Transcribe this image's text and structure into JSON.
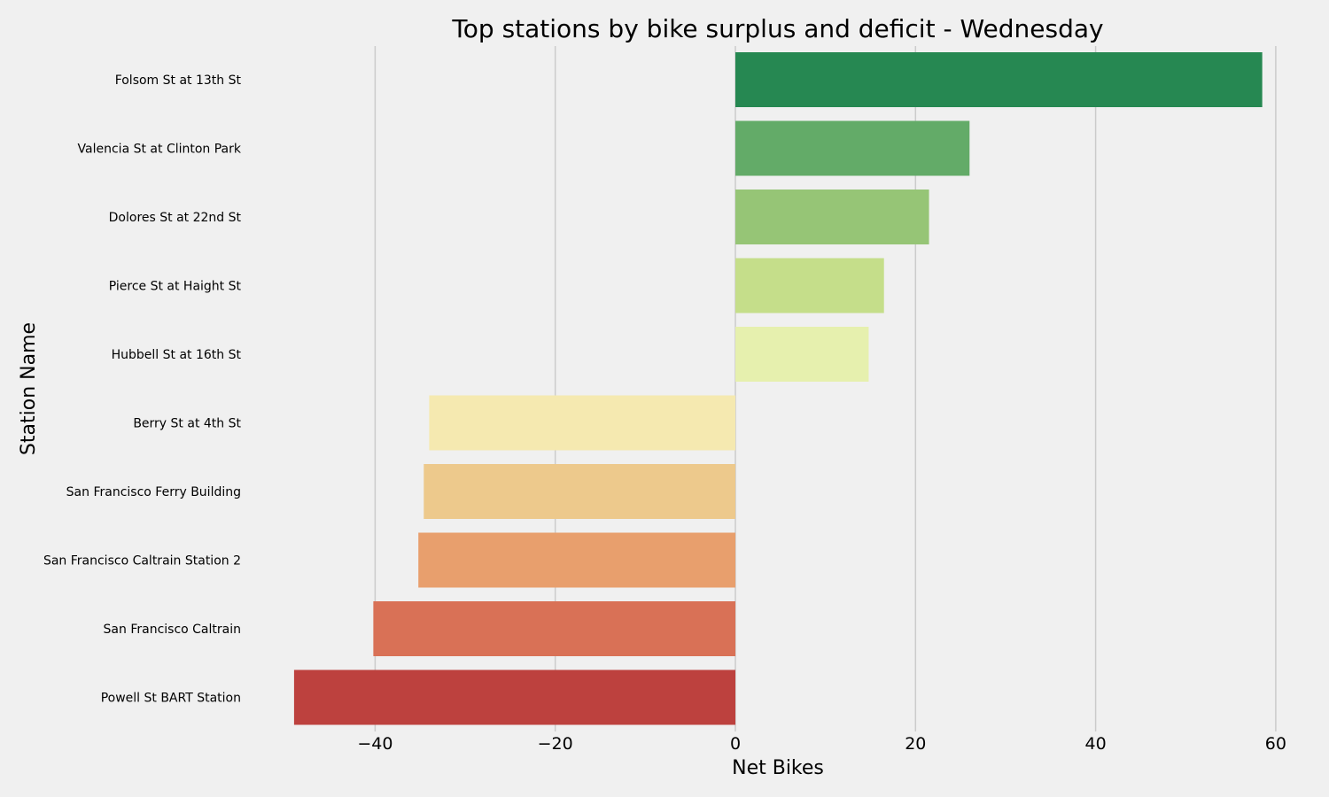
{
  "chart_data": {
    "type": "bar",
    "orientation": "horizontal",
    "title": "Top stations by bike surplus and deficit - Wednesday",
    "xlabel": "Net Bikes",
    "ylabel": "Station Name",
    "xlim": [
      -49,
      60
    ],
    "xticks": [
      -40,
      -20,
      0,
      20,
      40,
      60
    ],
    "xtick_labels": [
      "−40",
      "−20",
      "0",
      "20",
      "40",
      "60"
    ],
    "grid": "vertical",
    "categories": [
      "Folsom St at 13th St",
      "Valencia St at Clinton Park",
      "Dolores St at 22nd St",
      "Pierce St at Haight St",
      "Hubbell St at 16th St",
      "Berry St at 4th St",
      "San Francisco Ferry Building",
      "San Francisco Caltrain Station 2",
      "San Francisco Caltrain",
      "Powell St BART Station"
    ],
    "values": [
      58.5,
      26,
      21.5,
      16.5,
      14.8,
      -34,
      -34.6,
      -35.2,
      -40.2,
      -49
    ],
    "colors": [
      "#268852",
      "#63ab68",
      "#96c576",
      "#c5de8a",
      "#e6f0ae",
      "#f5e9b0",
      "#edc98c",
      "#e89f6d",
      "#d97156",
      "#bd413e"
    ]
  }
}
